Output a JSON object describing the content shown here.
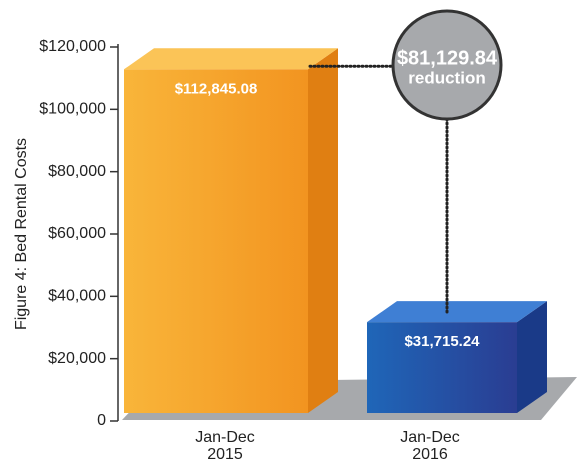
{
  "chart_data": {
    "type": "bar3d",
    "y_label": "Figure 4: Bed Rental Costs",
    "categories": [
      "Jan-Dec\n2015",
      "Jan-Dec\n2016"
    ],
    "values": [
      112845.08,
      31715.24
    ],
    "value_labels": [
      "$112,845.08",
      "$31,715.24"
    ],
    "colors": [
      "#f5a124",
      "#1f56a8"
    ],
    "ylim": [
      0,
      120000
    ],
    "yticks": [
      0,
      {
        "value": 20000,
        "label": "$20,000"
      },
      {
        "value": 40000,
        "label": "$40,000"
      },
      {
        "value": 60000,
        "label": "$60,000"
      },
      {
        "value": 80000,
        "label": "$80,000"
      },
      {
        "value": 100000,
        "label": "$100,000"
      },
      {
        "value": 120000,
        "label": "$120,000"
      }
    ],
    "annotation": {
      "amount": "$81,129.84",
      "text": "reduction"
    }
  }
}
